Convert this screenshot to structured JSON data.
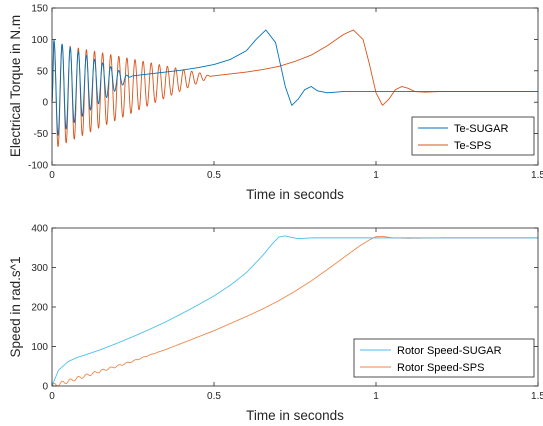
{
  "chart_data": [
    {
      "type": "line",
      "xlabel": "Time in seconds",
      "ylabel": "Electrical Torque in N.m",
      "xlim": [
        0,
        1.5
      ],
      "ylim": [
        -100,
        150
      ],
      "xticks": [
        "0",
        "0.5",
        "1",
        "1.5"
      ],
      "yticks": [
        "-100",
        "-50",
        "0",
        "50",
        "100",
        "150"
      ],
      "grid": false,
      "legend_position": "bottom-right",
      "series": [
        {
          "name": "Te-SUGAR",
          "color": "#0072bd",
          "oscillation": {
            "start": 0.0,
            "end": 0.25,
            "center_start": 20,
            "center_end": 40,
            "amplitude_start": 80,
            "amplitude_end": 0,
            "frequency_hz": 40
          },
          "x": [
            0.0,
            0.05,
            0.1,
            0.15,
            0.2,
            0.25,
            0.3,
            0.35,
            0.4,
            0.45,
            0.5,
            0.55,
            0.6,
            0.63,
            0.66,
            0.69,
            0.72,
            0.74,
            0.76,
            0.78,
            0.8,
            0.82,
            0.85,
            0.9,
            1.0,
            1.1,
            1.2,
            1.3,
            1.4,
            1.5
          ],
          "y": [
            0,
            22,
            28,
            33,
            38,
            42,
            45,
            48,
            51,
            55,
            60,
            68,
            82,
            100,
            115,
            95,
            25,
            -5,
            5,
            20,
            25,
            18,
            15,
            17,
            17,
            17,
            17,
            17,
            17,
            17
          ]
        },
        {
          "name": "Te-SPS",
          "color": "#d95319",
          "oscillation": {
            "start": 0.0,
            "end": 0.5,
            "center_start": 10,
            "center_end": 42,
            "amplitude_start": 85,
            "amplitude_end": 0,
            "frequency_hz": 40
          },
          "x": [
            0.0,
            0.1,
            0.2,
            0.3,
            0.4,
            0.5,
            0.55,
            0.6,
            0.65,
            0.7,
            0.75,
            0.8,
            0.85,
            0.9,
            0.93,
            0.96,
            0.98,
            1.0,
            1.02,
            1.04,
            1.06,
            1.08,
            1.1,
            1.12,
            1.15,
            1.2,
            1.3,
            1.4,
            1.5
          ],
          "y": [
            0,
            20,
            28,
            34,
            38,
            42,
            45,
            48,
            52,
            57,
            65,
            75,
            90,
            108,
            115,
            100,
            60,
            15,
            -5,
            5,
            20,
            25,
            22,
            17,
            16,
            17,
            17,
            17,
            17
          ]
        }
      ]
    },
    {
      "type": "line",
      "xlabel": "Time in seconds",
      "ylabel": "Speed in rad.s^1",
      "xlim": [
        0,
        1.5
      ],
      "ylim": [
        0,
        400
      ],
      "xticks": [
        "0",
        "0.5",
        "1",
        "1.5"
      ],
      "yticks": [
        "0",
        "100",
        "200",
        "300",
        "400"
      ],
      "grid": false,
      "legend_position": "bottom-right",
      "series": [
        {
          "name": "Rotor Speed-SUGAR",
          "color": "#4dbeee",
          "x": [
            0.0,
            0.02,
            0.05,
            0.08,
            0.1,
            0.15,
            0.2,
            0.25,
            0.3,
            0.35,
            0.4,
            0.45,
            0.5,
            0.55,
            0.6,
            0.65,
            0.68,
            0.7,
            0.72,
            0.74,
            0.76,
            0.78,
            0.8,
            0.85,
            0.9,
            1.0,
            1.1,
            1.2,
            1.3,
            1.4,
            1.5
          ],
          "y": [
            0,
            40,
            62,
            73,
            78,
            92,
            108,
            125,
            143,
            162,
            183,
            205,
            228,
            255,
            287,
            330,
            360,
            377,
            380,
            376,
            373,
            374,
            375,
            375,
            375,
            375,
            375,
            375,
            375,
            375,
            375
          ]
        },
        {
          "name": "Rotor Speed-SPS",
          "color": "#f0874a",
          "ripple": {
            "start": 0.0,
            "end": 0.35,
            "amplitude_start": 5,
            "amplitude_end": 0,
            "frequency_hz": 40
          },
          "x": [
            0.0,
            0.05,
            0.1,
            0.15,
            0.2,
            0.25,
            0.3,
            0.35,
            0.4,
            0.45,
            0.5,
            0.55,
            0.6,
            0.65,
            0.7,
            0.75,
            0.8,
            0.85,
            0.9,
            0.95,
            0.98,
            1.0,
            1.02,
            1.05,
            1.1,
            1.2,
            1.3,
            1.4,
            1.5
          ],
          "y": [
            0,
            12,
            25,
            38,
            50,
            63,
            78,
            92,
            108,
            124,
            140,
            158,
            176,
            195,
            216,
            240,
            266,
            295,
            325,
            355,
            370,
            378,
            379,
            375,
            374,
            375,
            375,
            375,
            375
          ]
        }
      ]
    }
  ]
}
